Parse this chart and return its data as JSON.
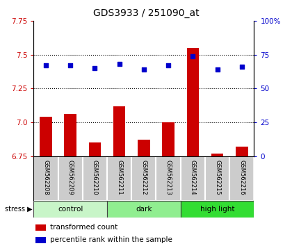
{
  "title": "GDS3933 / 251090_at",
  "samples": [
    "GSM562208",
    "GSM562209",
    "GSM562210",
    "GSM562211",
    "GSM562212",
    "GSM562213",
    "GSM562214",
    "GSM562215",
    "GSM562216"
  ],
  "transformed_counts": [
    7.04,
    7.06,
    6.85,
    7.12,
    6.87,
    7.0,
    7.55,
    6.77,
    6.82
  ],
  "percentile_ranks": [
    67,
    67,
    65,
    68,
    64,
    67,
    74,
    64,
    66
  ],
  "groups": [
    {
      "label": "control",
      "start": 0,
      "end": 3,
      "color": "#c8f5c8"
    },
    {
      "label": "dark",
      "start": 3,
      "end": 6,
      "color": "#90ee90"
    },
    {
      "label": "high light",
      "start": 6,
      "end": 9,
      "color": "#33dd33"
    }
  ],
  "ylim_left": [
    6.75,
    7.75
  ],
  "ylim_right": [
    0,
    100
  ],
  "yticks_left": [
    6.75,
    7.0,
    7.25,
    7.5,
    7.75
  ],
  "yticks_right": [
    0,
    25,
    50,
    75,
    100
  ],
  "bar_color": "#cc0000",
  "scatter_color": "#0000cc",
  "bar_bottom": 6.75,
  "bar_width": 0.5,
  "label_red": "transformed count",
  "label_blue": "percentile rank within the sample",
  "stress_label": "stress",
  "grid_lines": [
    7.0,
    7.25,
    7.5
  ],
  "sample_box_color": "#cccccc",
  "sample_box_edge": "#888888"
}
